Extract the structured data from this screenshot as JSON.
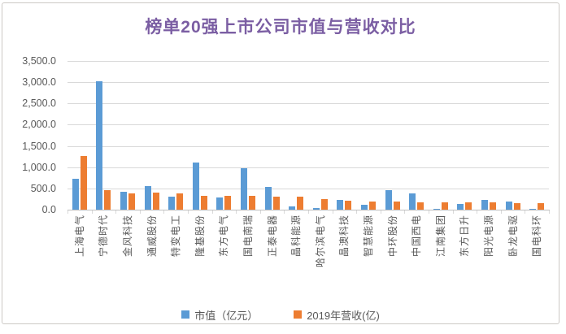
{
  "chart_data": {
    "type": "bar",
    "title": "榜单20强上市公司市值与营收对比",
    "title_color": "#7B5EA3",
    "categories": [
      "上海电气",
      "宁德时代",
      "金风科技",
      "通威股份",
      "特变电工",
      "隆基股份",
      "东方电气",
      "国电南瑞",
      "正泰电器",
      "晶科能源",
      "哈尔滨电气",
      "晶澳科技",
      "智慧能源",
      "中环股份",
      "中国西电",
      "江南集团",
      "东方日升",
      "阳光电源",
      "卧龙电驱",
      "国电科环"
    ],
    "series": [
      {
        "name": "市值（亿元）",
        "color": "#5B9BD5",
        "values": [
          720,
          3020,
          430,
          560,
          300,
          1100,
          285,
          980,
          545,
          75,
          45,
          230,
          110,
          450,
          380,
          20,
          130,
          220,
          185,
          15
        ]
      },
      {
        "name": "2019年营收(亿)",
        "color": "#ED7D31",
        "values": [
          1260,
          460,
          390,
          395,
          375,
          330,
          330,
          330,
          305,
          300,
          240,
          215,
          190,
          195,
          165,
          170,
          180,
          170,
          160,
          155
        ]
      }
    ],
    "ylim": [
      0,
      3500
    ],
    "ytick_labels": [
      "3,500.0",
      "3,000.0",
      "2,500.0",
      "2,000.0",
      "1,500.0",
      "1,000.0",
      "500.0",
      "0.0"
    ],
    "xlabel": "",
    "ylabel": "",
    "grid": true,
    "legend_position": "bottom",
    "gridline_color": "#d9d9d9",
    "axis_text_color": "#595959"
  }
}
